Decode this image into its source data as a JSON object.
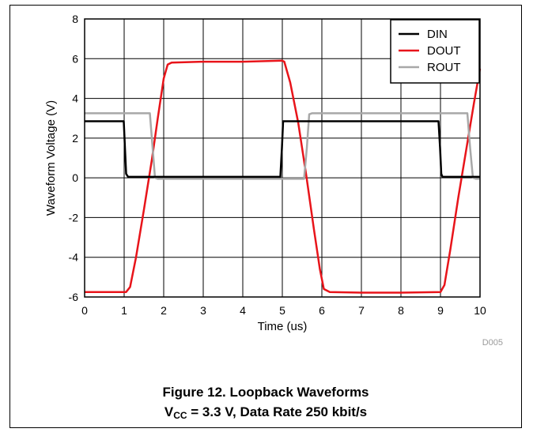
{
  "figure_code": "D005",
  "caption": {
    "line1": "Figure 12. Loopback Waveforms",
    "vcc_v": "V",
    "vcc_sub": "CC",
    "line2_rest": " = 3.3 V, Data Rate 250 kbit/s"
  },
  "chart_data": {
    "type": "line",
    "xlabel": "Time (us)",
    "ylabel": "Waveform Voltage (V)",
    "xlim": [
      0,
      10
    ],
    "ylim": [
      -6,
      8
    ],
    "xticks": [
      0,
      1,
      2,
      3,
      4,
      5,
      6,
      7,
      8,
      9,
      10
    ],
    "yticks": [
      -6,
      -4,
      -2,
      0,
      2,
      4,
      6,
      8
    ],
    "grid": true,
    "legend_position": "top-right",
    "series": [
      {
        "name": "DIN",
        "color": "#000000",
        "x": [
          0,
          0.99,
          1.02,
          1.05,
          1.1,
          4.95,
          4.99,
          5.02,
          5.1,
          8.95,
          8.99,
          9.02,
          9.05,
          9.1,
          10
        ],
        "y": [
          2.85,
          2.85,
          1.5,
          0.2,
          0.05,
          0.05,
          1.5,
          2.85,
          2.85,
          2.85,
          1.5,
          0.2,
          0.05,
          0.05,
          0.05
        ]
      },
      {
        "name": "DOUT",
        "color": "#e8141a",
        "x": [
          0,
          1.05,
          1.15,
          1.3,
          1.5,
          1.7,
          1.85,
          2.0,
          2.1,
          2.2,
          3.0,
          4.0,
          5.0,
          5.05,
          5.2,
          5.4,
          5.6,
          5.8,
          5.95,
          6.05,
          6.2,
          7.0,
          8.0,
          9.0,
          9.1,
          9.25,
          9.45,
          9.65,
          9.85,
          10
        ],
        "y": [
          -5.75,
          -5.75,
          -5.5,
          -4.0,
          -1.6,
          0.9,
          3.0,
          5.0,
          5.7,
          5.8,
          5.85,
          5.85,
          5.9,
          5.85,
          4.8,
          2.8,
          0.2,
          -2.6,
          -4.6,
          -5.6,
          -5.75,
          -5.78,
          -5.78,
          -5.75,
          -5.4,
          -3.6,
          -1.0,
          1.4,
          3.8,
          5.5
        ]
      },
      {
        "name": "ROUT",
        "color": "#a8a8a8",
        "x": [
          0,
          1.65,
          1.72,
          1.78,
          1.85,
          5.55,
          5.62,
          5.68,
          5.75,
          9.68,
          9.75,
          9.82,
          9.9,
          10
        ],
        "y": [
          3.25,
          3.25,
          1.5,
          0.0,
          -0.05,
          -0.05,
          1.5,
          3.2,
          3.25,
          3.25,
          1.5,
          0.0,
          -0.05,
          -0.05
        ]
      }
    ]
  }
}
